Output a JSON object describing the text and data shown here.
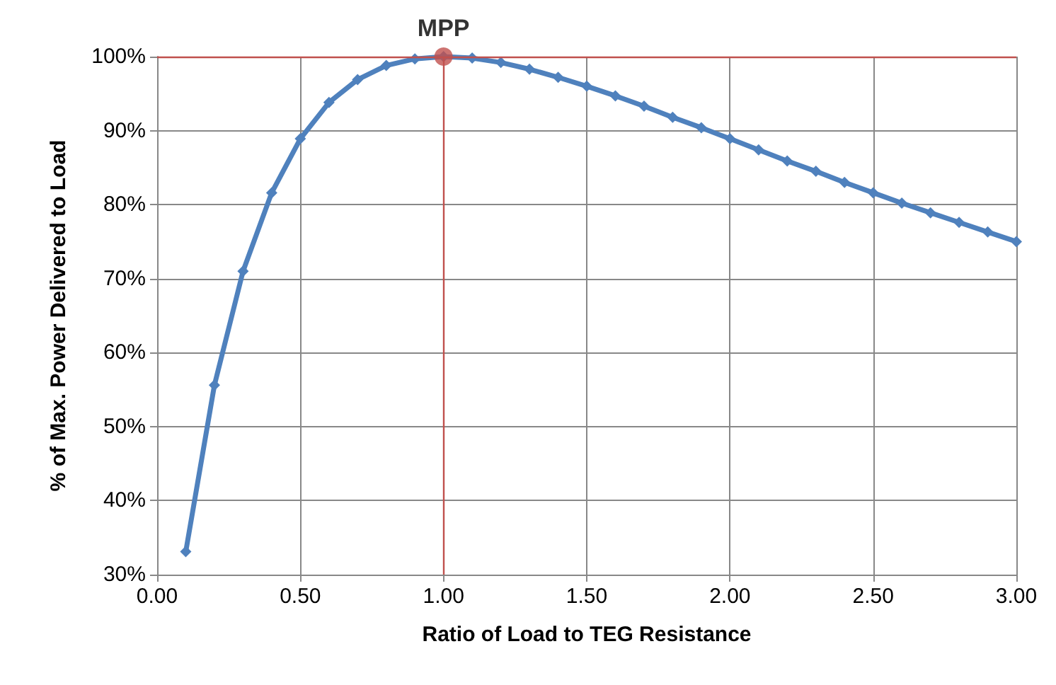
{
  "chart_data": {
    "type": "line",
    "xlabel": "Ratio of Load to TEG Resistance",
    "ylabel": "% of Max. Power Delivered to Load",
    "xlim": [
      0,
      3
    ],
    "xticks": [
      {
        "value": 0,
        "label": "0.00"
      },
      {
        "value": 0.5,
        "label": "0.50"
      },
      {
        "value": 1,
        "label": "1.00"
      },
      {
        "value": 1.5,
        "label": "1.50"
      },
      {
        "value": 2,
        "label": "2.00"
      },
      {
        "value": 2.5,
        "label": "2.50"
      },
      {
        "value": 3,
        "label": "3.00"
      }
    ],
    "ylim": [
      30,
      100
    ],
    "yticks": [
      {
        "value": 30,
        "label": "30%"
      },
      {
        "value": 40,
        "label": "40%"
      },
      {
        "value": 50,
        "label": "50%"
      },
      {
        "value": 60,
        "label": "60%"
      },
      {
        "value": 70,
        "label": "70%"
      },
      {
        "value": 80,
        "label": "80%"
      },
      {
        "value": 90,
        "label": "90%"
      },
      {
        "value": 100,
        "label": "100%"
      }
    ],
    "grid": true,
    "legend": false,
    "marker": "diamond",
    "line_style": "solid",
    "x": [
      0.1,
      0.2,
      0.3,
      0.4,
      0.5,
      0.6,
      0.7,
      0.8,
      0.9,
      1.0,
      1.1,
      1.2,
      1.3,
      1.4,
      1.5,
      1.6,
      1.7,
      1.8,
      1.9,
      2.0,
      2.1,
      2.2,
      2.3,
      2.4,
      2.5,
      2.6,
      2.7,
      2.8,
      2.9,
      3.0
    ],
    "series": [
      {
        "color": "#4f81bd",
        "values": [
          33.1,
          55.6,
          71.0,
          81.6,
          88.9,
          93.8,
          96.9,
          98.8,
          99.7,
          100,
          99.8,
          99.2,
          98.3,
          97.2,
          96.0,
          94.7,
          93.3,
          91.8,
          90.4,
          88.9,
          87.4,
          85.9,
          84.5,
          83.0,
          81.6,
          80.2,
          78.9,
          77.6,
          76.3,
          75.0
        ]
      },
      {
        "type": "scatter",
        "name": "MPP",
        "color": "#c0504d",
        "marker": "circle",
        "x": [
          1
        ],
        "values": [
          100
        ]
      }
    ],
    "ref_lines": [
      {
        "axis": "x",
        "value": 1,
        "color": "#c0504d"
      },
      {
        "axis": "y",
        "value": 100,
        "color": "#c0504d"
      }
    ]
  }
}
